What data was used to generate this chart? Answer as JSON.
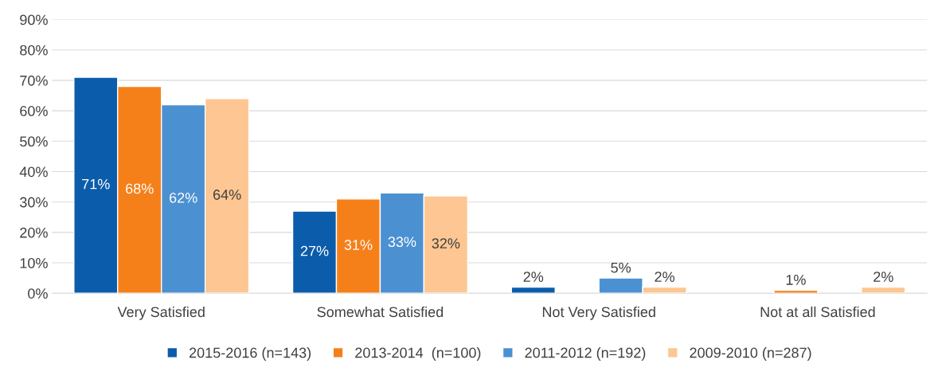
{
  "chart_data": {
    "type": "bar",
    "categories": [
      "Very Satisfied",
      "Somewhat Satisfied",
      "Not Very Satisfied",
      "Not at all Satisfied"
    ],
    "series": [
      {
        "name": "2015-2016 (n=143)",
        "color": "#0b5cab",
        "values": [
          71,
          27,
          2,
          null
        ],
        "value_labels": [
          "71%",
          "27%",
          "2%",
          null
        ]
      },
      {
        "name": "2013-2014  (n=100)",
        "color": "#f5801a",
        "values": [
          68,
          31,
          null,
          1
        ],
        "value_labels": [
          "68%",
          "31%",
          null,
          "1%"
        ]
      },
      {
        "name": "2011-2012 (n=192)",
        "color": "#4b91d2",
        "values": [
          62,
          33,
          5,
          null
        ],
        "value_labels": [
          "62%",
          "33%",
          "5%",
          null
        ]
      },
      {
        "name": "2009-2010 (n=287)",
        "color": "#fdc692",
        "values": [
          64,
          32,
          2,
          2
        ],
        "value_labels": [
          "64%",
          "32%",
          "2%",
          "2%"
        ]
      }
    ],
    "ylim": [
      0,
      90
    ],
    "yticks": [
      {
        "value": 0,
        "label": "0%"
      },
      {
        "value": 10,
        "label": "10%"
      },
      {
        "value": 20,
        "label": "20%"
      },
      {
        "value": 30,
        "label": "30%"
      },
      {
        "value": 40,
        "label": "40%"
      },
      {
        "value": 50,
        "label": "50%"
      },
      {
        "value": 60,
        "label": "60%"
      },
      {
        "value": 70,
        "label": "70%"
      },
      {
        "value": 80,
        "label": "80%"
      },
      {
        "value": 90,
        "label": "90%"
      }
    ],
    "grid": "y",
    "legend": "bottom"
  }
}
